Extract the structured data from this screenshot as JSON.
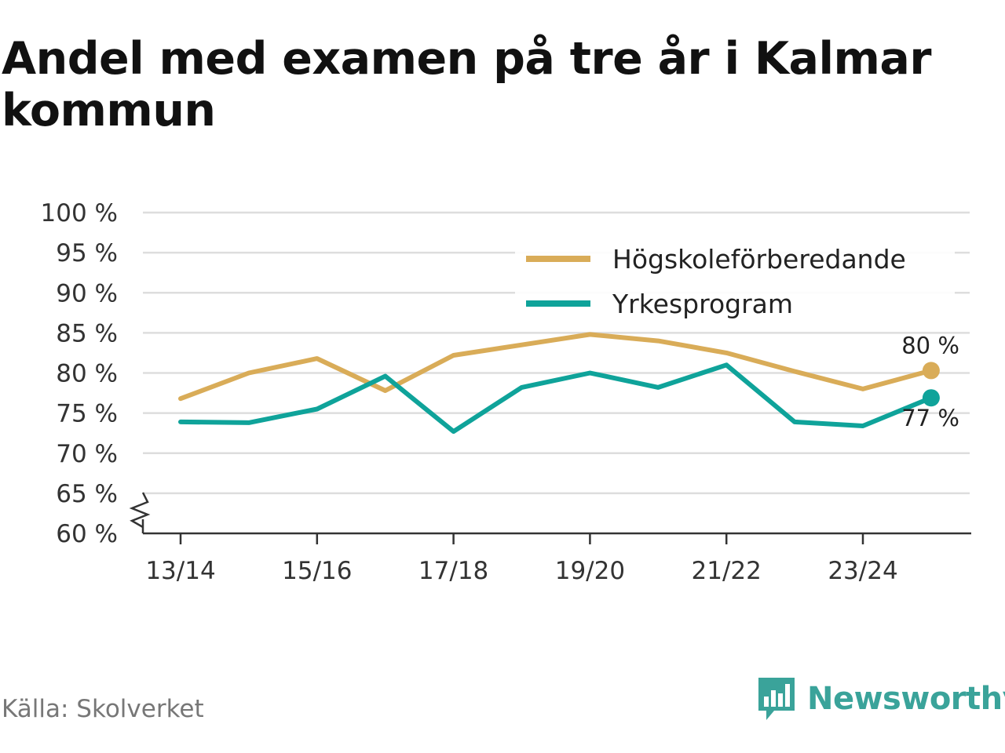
{
  "chart_data": {
    "type": "line",
    "title": "Andel med examen på tre år i Kalmar kommun",
    "xlabel": "",
    "ylabel": "",
    "x": [
      "13/14",
      "14/15",
      "15/16",
      "16/17",
      "17/18",
      "18/19",
      "19/20",
      "20/21",
      "21/22",
      "22/23",
      "23/24",
      "24/25"
    ],
    "x_tick_labels": [
      "13/14",
      "15/16",
      "17/18",
      "19/20",
      "21/22",
      "23/24"
    ],
    "ylim": [
      60,
      100
    ],
    "y_ticks": [
      60,
      65,
      70,
      75,
      80,
      85,
      90,
      95,
      100
    ],
    "y_tick_suffix": " %",
    "axis_break": true,
    "grid": true,
    "legend_position": "top-right",
    "series": [
      {
        "name": "Högskoleförberedande",
        "color": "#d9ac58",
        "values": [
          76.8,
          80.0,
          81.8,
          77.8,
          82.2,
          83.5,
          84.8,
          84.0,
          82.5,
          80.2,
          78.0,
          80.3
        ],
        "end_label": "80 %"
      },
      {
        "name": "Yrkesprogram",
        "color": "#0fa39a",
        "values": [
          73.9,
          73.8,
          75.5,
          79.6,
          72.7,
          78.2,
          80.0,
          78.2,
          81.0,
          73.9,
          73.4,
          76.9
        ],
        "end_label": "77 %"
      }
    ]
  },
  "footer": {
    "source": "Källa: Skolverket",
    "brand": "Newsworthy",
    "brand_color": "#3aa39a"
  }
}
